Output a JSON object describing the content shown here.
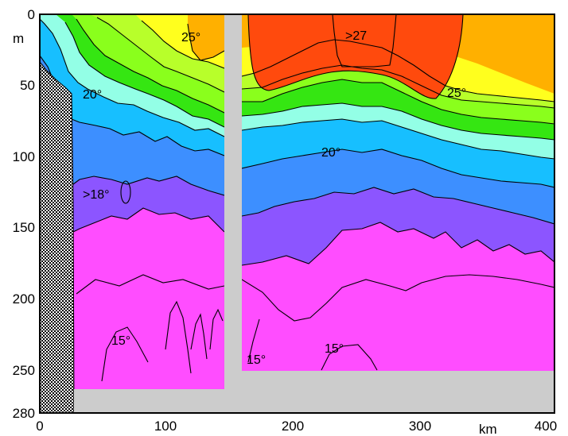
{
  "chart_data": {
    "type": "heatmap",
    "x_unit": "km",
    "y_unit": "m",
    "x_ticks": [
      "0",
      "100",
      "200",
      "300",
      "400"
    ],
    "y_ticks": [
      "0",
      "50",
      "100",
      "150",
      "200",
      "250",
      "280"
    ],
    "xlim": [
      0,
      400
    ],
    "ylim": [
      280,
      0
    ],
    "isotherm_labels": {
      "a": "25°",
      "b": ">27",
      "c": "20°",
      "d": "25°",
      "e": "20°",
      "f": ">18°",
      "g": "15°",
      "h": "15°",
      "i": "15°"
    },
    "colors": {
      "t27": "#ff4a0d",
      "t26": "#ffb000",
      "t25": "#ffff1e",
      "t23": "#b8ff2a",
      "t22": "#8aff1c",
      "t21": "#35e612",
      "t20": "#93ffe6",
      "t19": "#17bfff",
      "t18": "#3d8fff",
      "t17": "#8c55ff",
      "t15": "#ff4dff",
      "topography": "#dddddd",
      "no_data": "#cccccc"
    }
  }
}
